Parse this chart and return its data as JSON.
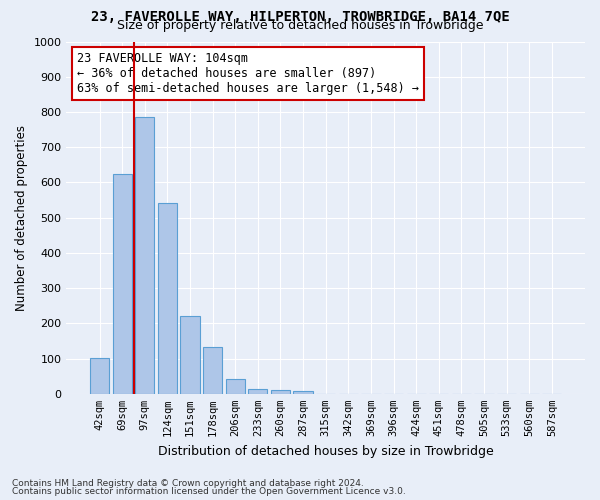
{
  "title": "23, FAVEROLLE WAY, HILPERTON, TROWBRIDGE, BA14 7QE",
  "subtitle": "Size of property relative to detached houses in Trowbridge",
  "xlabel": "Distribution of detached houses by size in Trowbridge",
  "ylabel": "Number of detached properties",
  "bar_labels": [
    "42sqm",
    "69sqm",
    "97sqm",
    "124sqm",
    "151sqm",
    "178sqm",
    "206sqm",
    "233sqm",
    "260sqm",
    "287sqm",
    "315sqm",
    "342sqm",
    "369sqm",
    "396sqm",
    "424sqm",
    "451sqm",
    "478sqm",
    "505sqm",
    "533sqm",
    "560sqm",
    "587sqm"
  ],
  "bar_values": [
    103,
    625,
    787,
    543,
    220,
    133,
    42,
    15,
    10,
    8,
    0,
    0,
    0,
    0,
    0,
    0,
    0,
    0,
    0,
    0,
    0
  ],
  "bar_color": "#aec6e8",
  "bar_edge_color": "#5a9fd4",
  "vline_x": 1.5,
  "annotation_text": "23 FAVEROLLE WAY: 104sqm\n← 36% of detached houses are smaller (897)\n63% of semi-detached houses are larger (1,548) →",
  "annotation_box_color": "#ffffff",
  "annotation_box_edge": "#cc0000",
  "vline_color": "#cc0000",
  "ylim": [
    0,
    1000
  ],
  "yticks": [
    0,
    100,
    200,
    300,
    400,
    500,
    600,
    700,
    800,
    900,
    1000
  ],
  "footer_line1": "Contains HM Land Registry data © Crown copyright and database right 2024.",
  "footer_line2": "Contains public sector information licensed under the Open Government Licence v3.0.",
  "bg_color": "#e8eef8",
  "grid_color": "#ffffff"
}
